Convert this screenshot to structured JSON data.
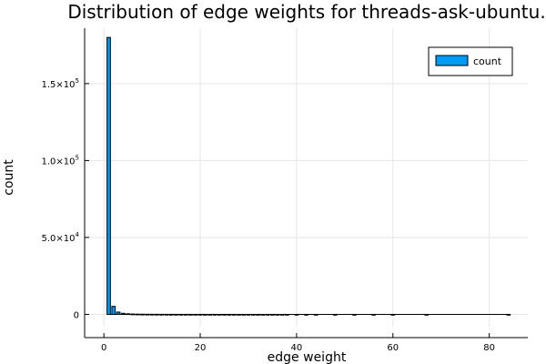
{
  "chart_data": {
    "type": "bar",
    "title": "Distribution of edge weights for threads-ask-ubuntu.",
    "xlabel": "edge weight",
    "ylabel": "count",
    "xlim": [
      -4,
      88
    ],
    "ylim": [
      -8000,
      186000
    ],
    "x_ticks": [
      0,
      20,
      40,
      60,
      80
    ],
    "x_tick_labels": [
      "0",
      "20",
      "40",
      "60",
      "80"
    ],
    "y_ticks": [
      {
        "value": 0,
        "mantissa": "0",
        "exponent": ""
      },
      {
        "value": 50000,
        "mantissa": "5.0×10",
        "exponent": "4"
      },
      {
        "value": 100000,
        "mantissa": "1.0×10",
        "exponent": "5"
      },
      {
        "value": 150000,
        "mantissa": "1.5×10",
        "exponent": "5"
      }
    ],
    "grid": true,
    "legend_position": "top-right",
    "series": [
      {
        "name": "count",
        "color": "#009af9",
        "x": [
          1,
          2,
          3,
          4,
          5,
          6,
          7,
          8,
          9,
          10,
          11,
          12,
          13,
          14,
          15,
          16,
          17,
          18,
          19,
          20,
          21,
          22,
          23,
          24,
          25,
          26,
          27,
          28,
          29,
          30,
          31,
          32,
          33,
          34,
          35,
          36,
          37,
          38,
          40,
          42,
          44,
          48,
          52,
          56,
          60,
          67,
          84
        ],
        "values": [
          180000,
          5200,
          1500,
          700,
          400,
          250,
          180,
          130,
          100,
          80,
          60,
          50,
          40,
          35,
          30,
          25,
          20,
          18,
          15,
          12,
          10,
          9,
          8,
          7,
          6,
          5,
          5,
          4,
          4,
          3,
          3,
          3,
          2,
          2,
          2,
          2,
          2,
          2,
          1,
          1,
          1,
          1,
          1,
          1,
          1,
          1,
          1
        ]
      }
    ]
  }
}
